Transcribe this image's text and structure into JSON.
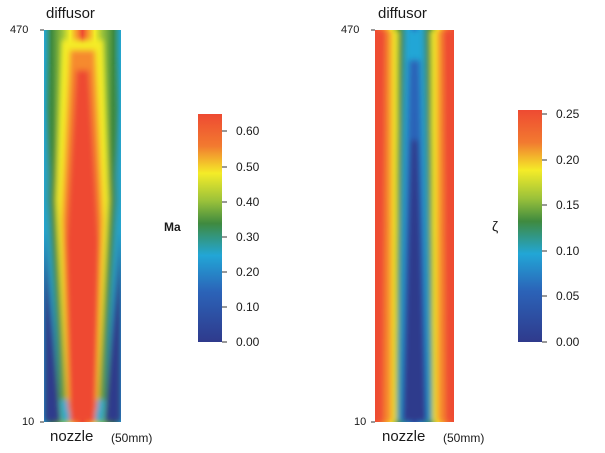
{
  "panels": [
    {
      "top_label": "diffusor",
      "bottom_label": "nozzle",
      "bottom_unit": "(50mm)",
      "y_top_tick": "470",
      "y_bottom_tick": "10",
      "variable_label": "Ma",
      "colorbar_ticks": [
        "0.60",
        "0.50",
        "0.40",
        "0.30",
        "0.20",
        "0.10",
        "0.00"
      ],
      "colorbar_range": [
        0.0,
        0.65
      ]
    },
    {
      "top_label": "diffusor",
      "bottom_label": "nozzle",
      "bottom_unit": "(50mm)",
      "y_top_tick": "470",
      "y_bottom_tick": "10",
      "variable_label": "ζ",
      "colorbar_ticks": [
        "0.25",
        "0.20",
        "0.15",
        "0.10",
        "0.05",
        "0.00"
      ],
      "colorbar_range": [
        0.0,
        0.25
      ]
    }
  ],
  "colors": {
    "red": "#ee4a32",
    "orange": "#f68a2e",
    "yellow": "#f4ec28",
    "green": "#3f8a3f",
    "cyan": "#22a6d6",
    "blue": "#3e4c9e",
    "navy": "#2f3a8c"
  }
}
